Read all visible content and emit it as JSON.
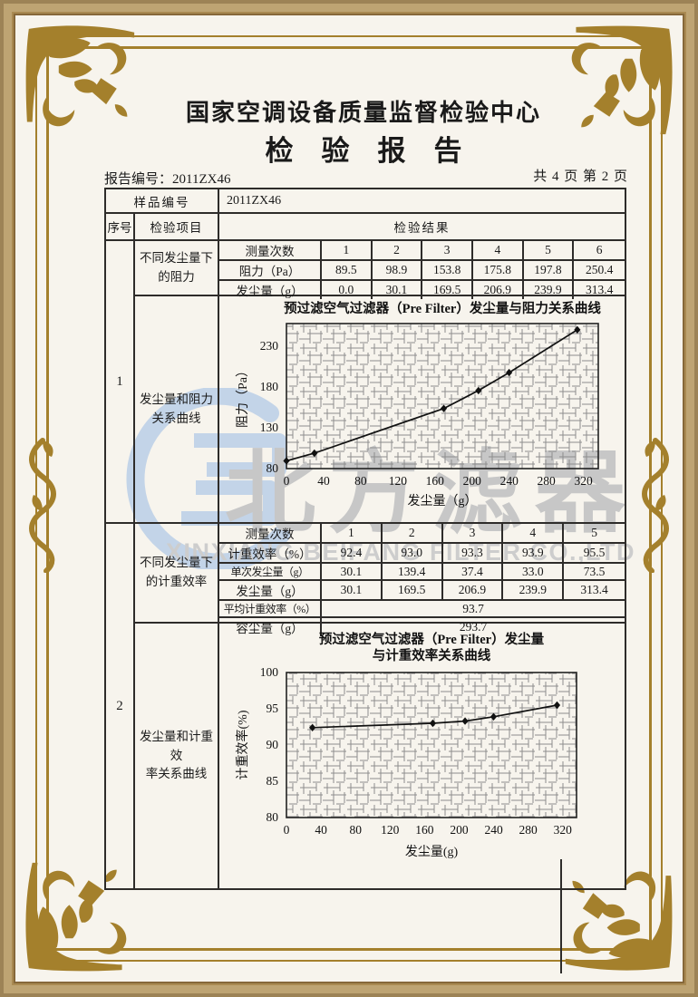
{
  "page": {
    "org_title": "国家空调设备质量监督检验中心",
    "report_title": "检　验　报　告",
    "report_no": "报告编号：2011ZX46",
    "page_info": "共 4 页 第 2 页"
  },
  "info": {
    "sample_label": "样品编号",
    "sample_value": "2011ZX46",
    "col_seq": "序号",
    "col_item": "检验项目",
    "col_result": "检验结果"
  },
  "s1": {
    "seq": "1",
    "item_resistance": "不同发尘量下\n的阻力",
    "item_curve": "发尘量和阻力\n关系曲线",
    "table": {
      "row_labels": [
        "测量次数",
        "阻力（Pa）",
        "发尘量（g）"
      ],
      "columns": [
        "1",
        "2",
        "3",
        "4",
        "5",
        "6"
      ],
      "resistance": [
        "89.5",
        "98.9",
        "153.8",
        "175.8",
        "197.8",
        "250.4"
      ],
      "dust": [
        "0.0",
        "30.1",
        "169.5",
        "206.9",
        "239.9",
        "313.4"
      ]
    }
  },
  "s2": {
    "seq": "2",
    "item_efficiency": "不同发尘量下\n的计重效率",
    "item_curve": "发尘量和计重效\n率关系曲线",
    "table": {
      "row_labels": [
        "测量次数",
        "计重效率（%）",
        "单次发尘量（g）",
        "发尘量（g）",
        "平均计重效率（%）",
        "容尘量（g）"
      ],
      "columns": [
        "1",
        "2",
        "3",
        "4",
        "5"
      ],
      "efficiency": [
        "92.4",
        "93.0",
        "93.3",
        "93.9",
        "95.5"
      ],
      "single_dust": [
        "30.1",
        "139.4",
        "37.4",
        "33.0",
        "73.5"
      ],
      "dust": [
        "30.1",
        "169.5",
        "206.9",
        "239.9",
        "313.4"
      ],
      "avg_efficiency": "93.7",
      "dust_capacity": "293.7"
    }
  },
  "watermark": {
    "cn": "北方滤器",
    "en": "XINXIANG BEIFANG FILTER CO.,LTD"
  },
  "colors": {
    "frame_gold": "#a4802c",
    "band_tan": "#a98a52",
    "table_line": "#2e2c2a",
    "paper": "#f7f4ed",
    "watermark_blue": "#c3d4e8",
    "watermark_gray": "#c7c7c7"
  },
  "chart_data": [
    {
      "type": "line",
      "title": "预过滤空气过滤器（Pre Filter）发尘量与阻力关系曲线",
      "xlabel": "发尘量（g）",
      "ylabel": "阻力（Pa）",
      "x": [
        0,
        30.1,
        169.5,
        206.9,
        239.9,
        313.4
      ],
      "y": [
        89.5,
        98.9,
        153.8,
        175.8,
        197.8,
        250.4
      ],
      "xlim": [
        0,
        336
      ],
      "ylim": [
        80,
        258
      ],
      "xticks": [
        0,
        40,
        80,
        120,
        160,
        200,
        240,
        280,
        320
      ],
      "yticks": [
        80,
        130,
        180,
        230
      ],
      "grid": true,
      "legend_position": "none",
      "marker": "diamond",
      "line_color": "#111111"
    },
    {
      "type": "line",
      "title": "预过滤空气过滤器（Pre Filter）发尘量\n与计重效率关系曲线",
      "xlabel": "发尘量(g)",
      "ylabel": "计重效率(%)",
      "x": [
        30.1,
        169.5,
        206.9,
        239.9,
        313.4
      ],
      "y": [
        92.4,
        93.0,
        93.3,
        93.9,
        95.5
      ],
      "xlim": [
        0,
        336
      ],
      "ylim": [
        80,
        100
      ],
      "xticks": [
        0,
        40,
        80,
        120,
        160,
        200,
        240,
        280,
        320
      ],
      "yticks": [
        80,
        85,
        90,
        95,
        100
      ],
      "grid": true,
      "legend_position": "none",
      "marker": "diamond",
      "line_color": "#111111"
    }
  ]
}
